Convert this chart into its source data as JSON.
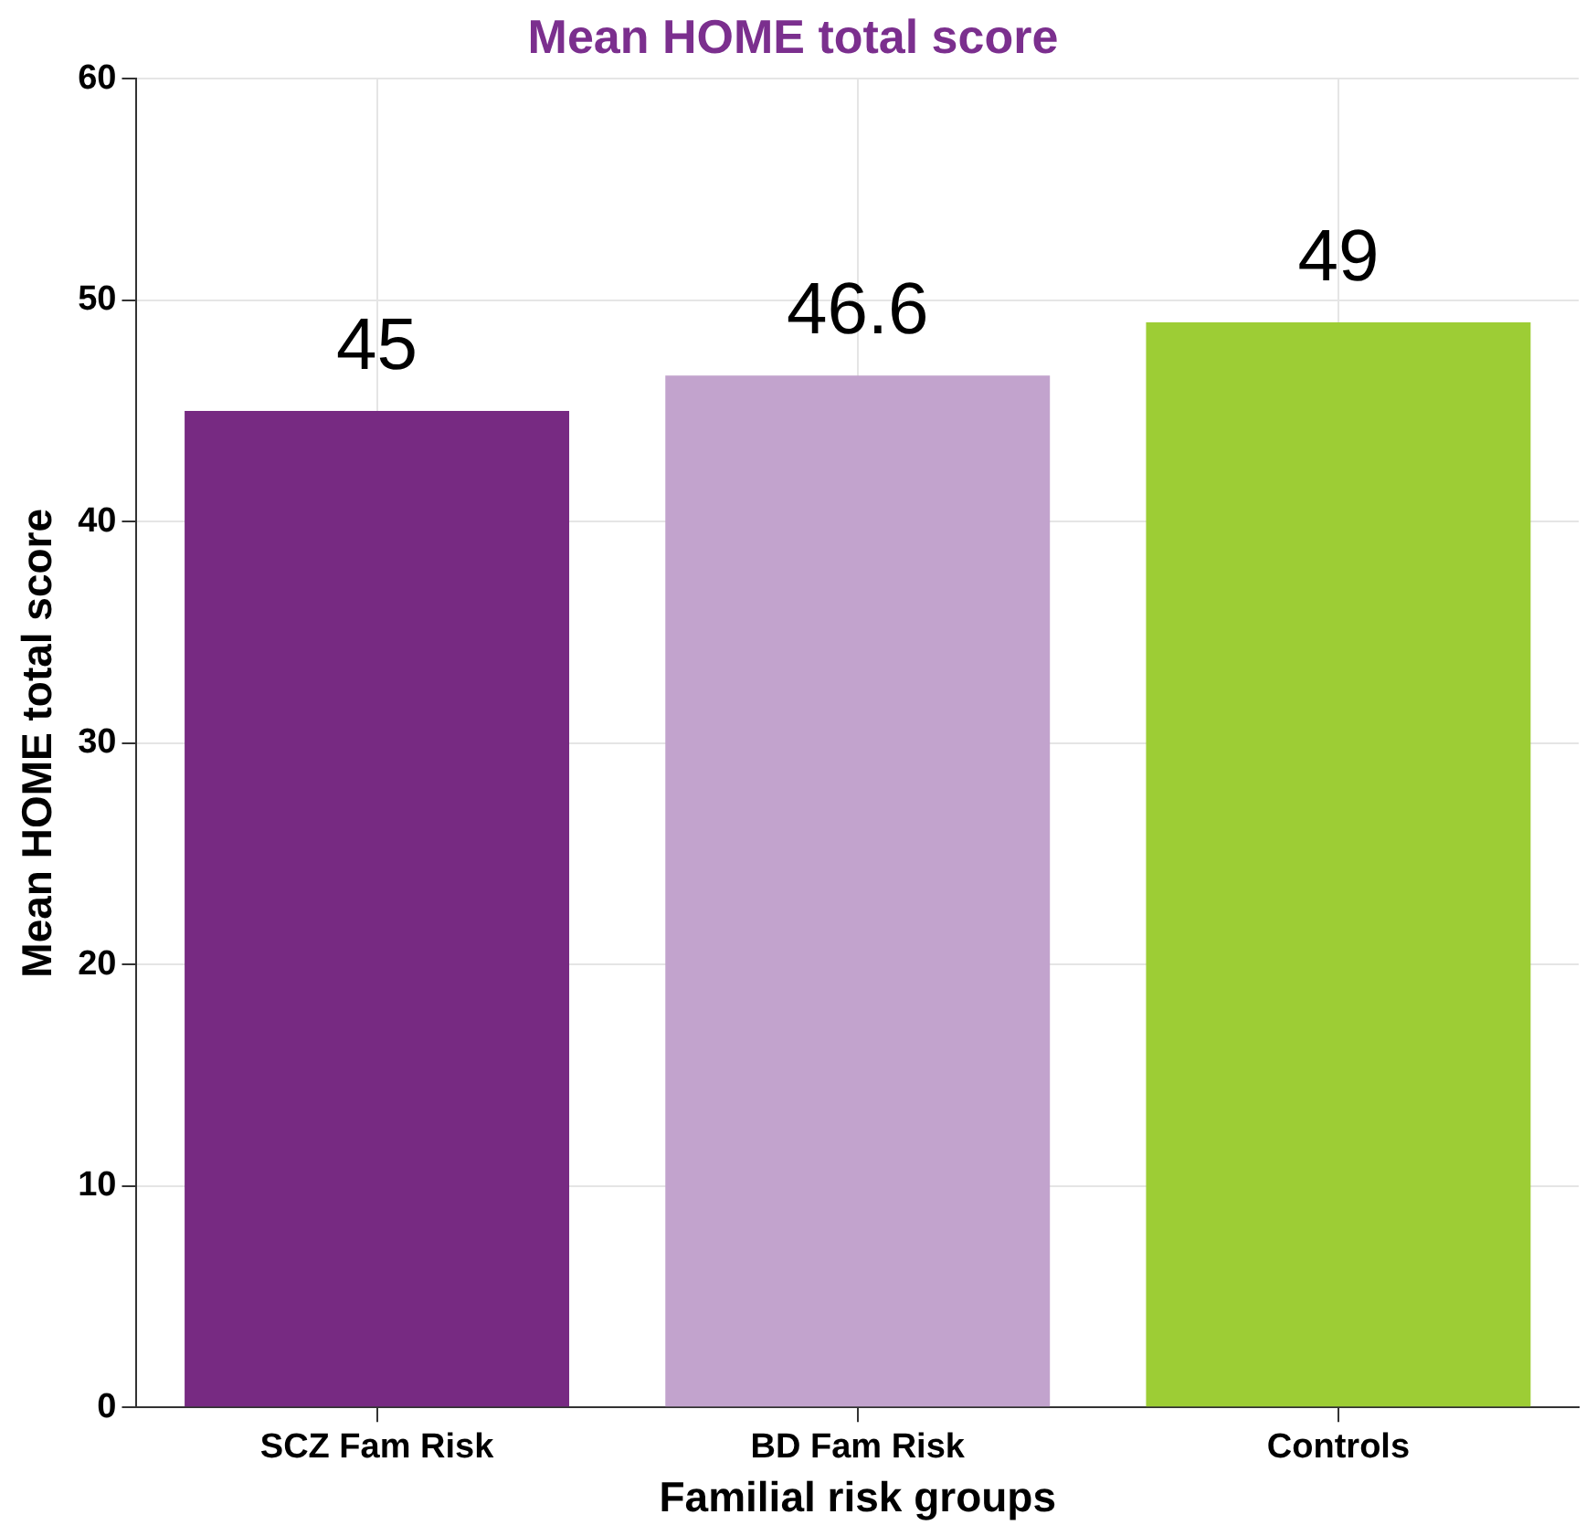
{
  "chart_data": {
    "type": "bar",
    "title": "Mean HOME total score",
    "xlabel": "Familial risk groups",
    "ylabel": "Mean HOME total score",
    "categories": [
      "SCZ Fam Risk",
      "BD Fam Risk",
      "Controls"
    ],
    "values": [
      45,
      46.6,
      49
    ],
    "colors": [
      "#772a82",
      "#c2a3cd",
      "#9dcd35"
    ],
    "ylim": [
      0,
      60
    ],
    "yticks": [
      0,
      10,
      20,
      30,
      40,
      50,
      60
    ],
    "grid": true,
    "data_labels": true
  }
}
